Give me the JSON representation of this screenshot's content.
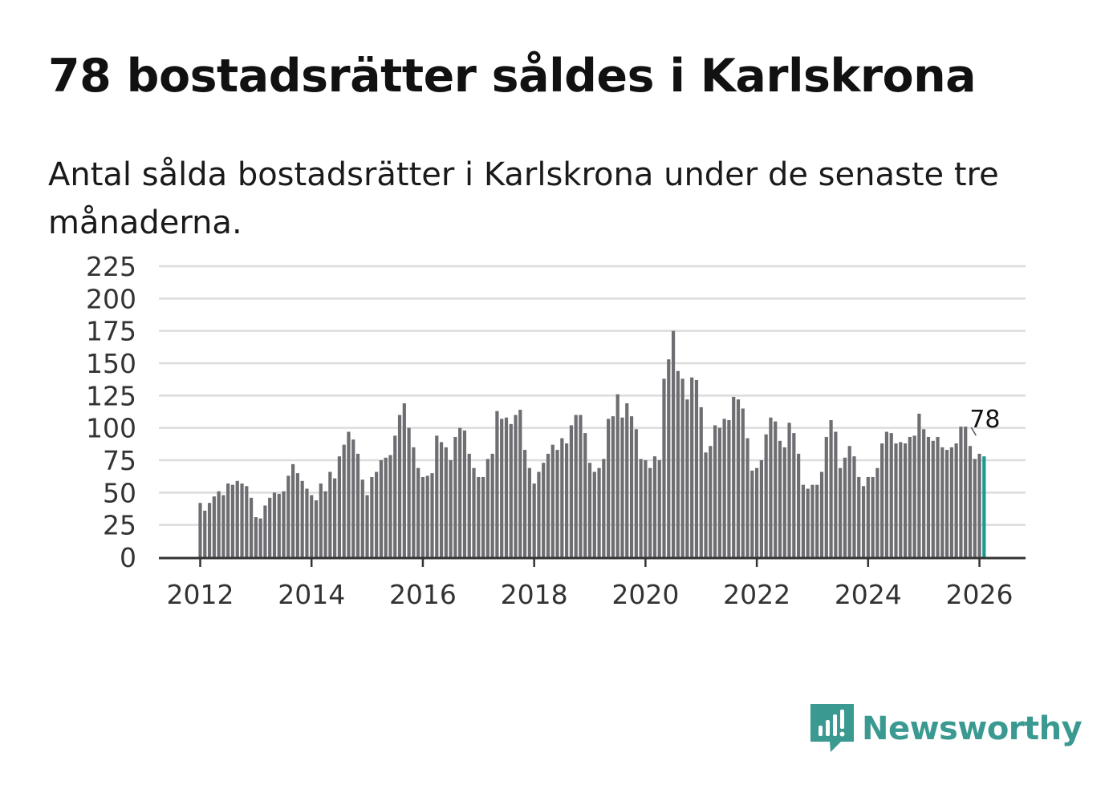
{
  "chart_data": {
    "type": "bar",
    "title": "78 bostadsrätter såldes i Karlskrona",
    "subtitle": "Antal sålda bostadsrätter i Karlskrona under de senaste tre månaderna.",
    "xlabel": "",
    "ylabel": "",
    "x_start": "2012-01",
    "frequency": "monthly",
    "x_ticks": [
      "2012",
      "2014",
      "2016",
      "2018",
      "2020",
      "2022",
      "2024",
      "2026"
    ],
    "y_ticks": [
      0,
      25,
      50,
      75,
      100,
      125,
      150,
      175,
      200,
      225
    ],
    "ylim": [
      0,
      225
    ],
    "grid": true,
    "highlight_color": "#1a9a8f",
    "bar_color": "#6d6d72",
    "annotation": {
      "text": "78",
      "target": "last"
    },
    "values": [
      42,
      36,
      42,
      47,
      51,
      48,
      57,
      56,
      59,
      57,
      55,
      46,
      31,
      30,
      40,
      46,
      50,
      49,
      51,
      63,
      72,
      65,
      59,
      53,
      48,
      44,
      57,
      51,
      66,
      61,
      78,
      87,
      97,
      91,
      80,
      60,
      48,
      62,
      66,
      75,
      77,
      79,
      94,
      110,
      119,
      100,
      85,
      69,
      62,
      63,
      65,
      94,
      89,
      85,
      75,
      93,
      100,
      98,
      80,
      69,
      62,
      62,
      76,
      80,
      113,
      107,
      108,
      103,
      110,
      114,
      83,
      69,
      57,
      66,
      73,
      80,
      87,
      83,
      92,
      88,
      102,
      110,
      110,
      96,
      73,
      66,
      69,
      76,
      107,
      109,
      126,
      108,
      119,
      109,
      99,
      76,
      75,
      69,
      78,
      75,
      138,
      153,
      175,
      144,
      138,
      122,
      139,
      137,
      116,
      81,
      86,
      102,
      100,
      107,
      106,
      124,
      122,
      115,
      92,
      67,
      69,
      75,
      95,
      108,
      105,
      90,
      85,
      104,
      96,
      80,
      56,
      53,
      56,
      56,
      66,
      93,
      106,
      97,
      69,
      77,
      86,
      78,
      62,
      55,
      62,
      62,
      69,
      88,
      97,
      96,
      88,
      89,
      88,
      93,
      94,
      111,
      99,
      93,
      90,
      93,
      85,
      83,
      85,
      88,
      101,
      101,
      86,
      76,
      80,
      78
    ]
  },
  "brand": {
    "name": "Newsworthy",
    "color": "#3a9a91"
  }
}
